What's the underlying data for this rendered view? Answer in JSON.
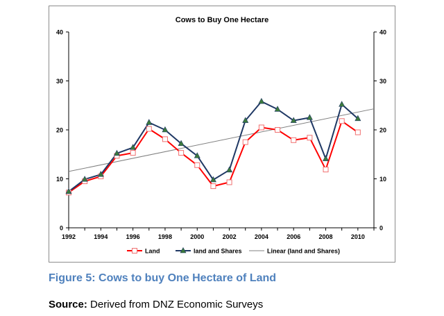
{
  "chart_data": {
    "type": "line",
    "title": "Cows to Buy One Hectare",
    "xlabel": "",
    "ylabel": "",
    "x": [
      1992,
      1993,
      1994,
      1995,
      1996,
      1997,
      1998,
      1999,
      2000,
      2001,
      2002,
      2003,
      2004,
      2005,
      2006,
      2007,
      2008,
      2009,
      2010
    ],
    "xticks": [
      "1992",
      "1994",
      "1996",
      "1998",
      "2000",
      "2002",
      "2004",
      "2006",
      "2008",
      "2010"
    ],
    "xlim": [
      1992,
      2011
    ],
    "ylim": [
      0,
      40
    ],
    "yticks": [
      "0",
      "10",
      "20",
      "30",
      "40"
    ],
    "series": [
      {
        "name": "Land",
        "color": "#ff0000",
        "marker": "open-square",
        "values": [
          7.2,
          9.5,
          10.5,
          14.7,
          15.3,
          20.2,
          18.1,
          15.3,
          12.8,
          8.5,
          9.3,
          17.5,
          20.5,
          20.0,
          17.9,
          18.4,
          11.9,
          21.8,
          19.5
        ]
      },
      {
        "name": "land and Shares",
        "color": "#1f3864",
        "marker": "triangle",
        "values": [
          7.4,
          9.9,
          10.9,
          15.2,
          16.4,
          21.5,
          20.0,
          17.2,
          14.7,
          9.8,
          11.8,
          21.9,
          25.8,
          24.2,
          21.9,
          22.5,
          14.1,
          25.2,
          22.3
        ]
      }
    ],
    "trendline": {
      "name": "Linear (land and Shares)",
      "color": "#808080",
      "x": [
        1992,
        2011
      ],
      "values": [
        11.5,
        24.3
      ]
    },
    "legend_position": "bottom"
  },
  "caption": "Figure 5: Cows to buy One Hectare of Land",
  "source": {
    "label": "Source:",
    "text": " Derived from DNZ Economic Surveys"
  }
}
